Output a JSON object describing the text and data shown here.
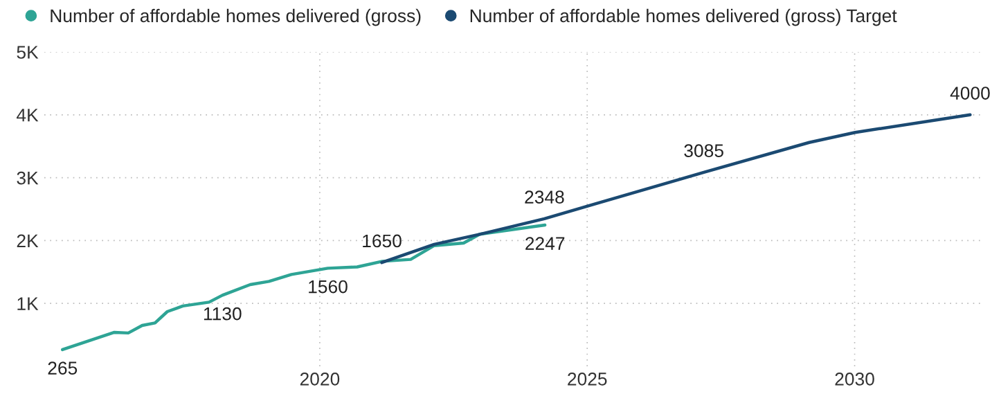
{
  "chart_data": {
    "type": "line",
    "series": [
      {
        "name": "Number of affordable homes delivered (gross)",
        "color": "#2ea495",
        "x": [
          2015.19,
          2016.16,
          2016.42,
          2016.68,
          2016.92,
          2017.15,
          2017.44,
          2017.93,
          2018.18,
          2018.7,
          2019.05,
          2019.47,
          2020.15,
          2020.7,
          2021.17,
          2021.7,
          2022.14,
          2022.69,
          2022.99,
          2024.21
        ],
        "values": [
          265,
          540,
          530,
          650,
          690,
          870,
          960,
          1020,
          1130,
          1300,
          1350,
          1460,
          1560,
          1580,
          1670,
          1700,
          1920,
          1960,
          2100,
          2247
        ],
        "value_labels": [
          "265",
          null,
          null,
          null,
          null,
          null,
          null,
          null,
          "1130",
          null,
          null,
          null,
          "1560",
          null,
          null,
          null,
          null,
          null,
          null,
          "2247"
        ]
      },
      {
        "name": "Number of affordable homes delivered (gross) Target",
        "color": "#1b4a72",
        "x": [
          2021.16,
          2022.14,
          2022.99,
          2024.2,
          2025.14,
          2027.18,
          2029.15,
          2030.01,
          2032.16
        ],
        "values": [
          1650,
          1940,
          2100,
          2348,
          2580,
          3085,
          3560,
          3720,
          4000
        ],
        "value_labels": [
          "1650",
          null,
          null,
          "2348",
          null,
          "3085",
          null,
          null,
          "4000"
        ]
      }
    ],
    "xlim": [
      2014.85,
      2032.4
    ],
    "xticks": [
      2020,
      2025,
      2030
    ],
    "ylim": [
      0,
      5000
    ],
    "yticks": [
      {
        "value": 1000,
        "label": "1K"
      },
      {
        "value": 2000,
        "label": "2K"
      },
      {
        "value": 3000,
        "label": "3K"
      },
      {
        "value": 4000,
        "label": "4K"
      },
      {
        "value": 5000,
        "label": "5K"
      }
    ],
    "grid": true,
    "legend": "top left",
    "line_style": "solid",
    "marker": "none"
  }
}
